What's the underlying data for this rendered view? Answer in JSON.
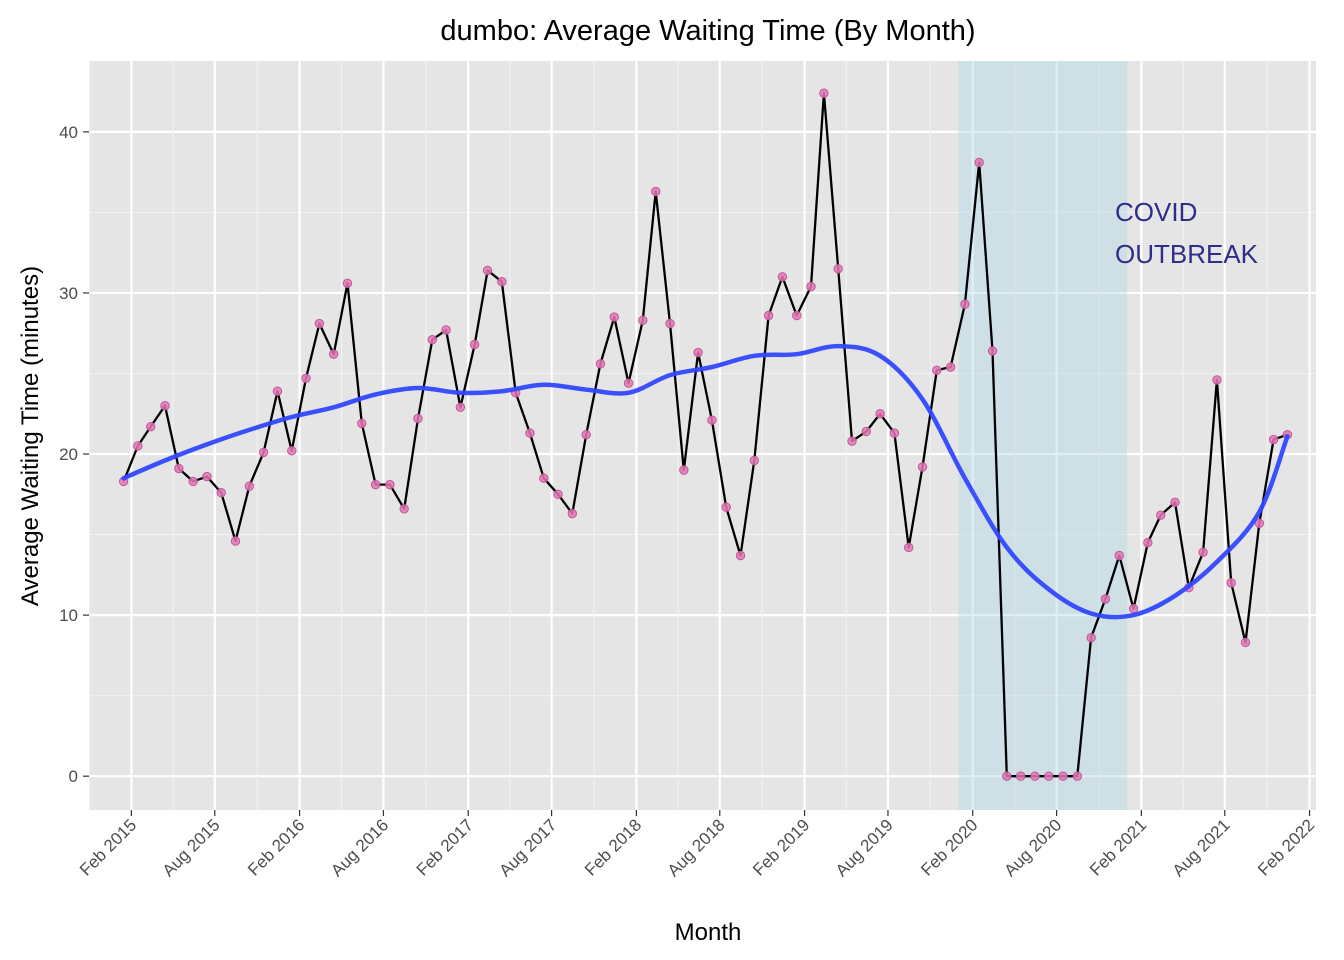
{
  "chart_data": {
    "type": "line",
    "title": "dumbo: Average Waiting Time (By Month)",
    "xlabel": "Month",
    "ylabel": "Average Waiting Time (minutes)",
    "x_range": [
      "2014-11-01",
      "2022-02-15"
    ],
    "ylim": [
      -2.1,
      44.4
    ],
    "x_ticks": [
      "Feb 2015",
      "Aug 2015",
      "Feb 2016",
      "Aug 2016",
      "Feb 2017",
      "Aug 2017",
      "Feb 2018",
      "Aug 2018",
      "Feb 2019",
      "Aug 2019",
      "Feb 2020",
      "Aug 2020",
      "Feb 2021",
      "Aug 2021",
      "Feb 2022"
    ],
    "x_tick_dates": [
      "2015-02-01",
      "2015-08-01",
      "2016-02-01",
      "2016-08-01",
      "2017-02-01",
      "2017-08-01",
      "2018-02-01",
      "2018-08-01",
      "2019-02-01",
      "2019-08-01",
      "2020-02-01",
      "2020-08-01",
      "2021-02-01",
      "2021-08-01",
      "2022-02-01"
    ],
    "y_ticks": [
      0,
      10,
      20,
      30,
      40
    ],
    "grid": true,
    "panel_background": "#e5e5e5",
    "colors": {
      "line": "#000000",
      "points": "#e377b6",
      "smooth": "#3048ff",
      "covid_band": "#add8e6",
      "annotation": "#2e2e8a"
    },
    "series": [
      {
        "type": "line+points",
        "x": [
          "2015-01",
          "2015-02",
          "2015-03",
          "2015-04",
          "2015-05",
          "2015-06",
          "2015-07",
          "2015-08",
          "2015-09",
          "2015-10",
          "2015-11",
          "2015-12",
          "2016-01",
          "2016-02",
          "2016-03",
          "2016-04",
          "2016-05",
          "2016-06",
          "2016-07",
          "2016-08",
          "2016-09",
          "2016-10",
          "2016-11",
          "2016-12",
          "2017-01",
          "2017-02",
          "2017-03",
          "2017-04",
          "2017-05",
          "2017-06",
          "2017-07",
          "2017-08",
          "2017-09",
          "2017-10",
          "2017-11",
          "2017-12",
          "2018-01",
          "2018-02",
          "2018-03",
          "2018-04",
          "2018-05",
          "2018-06",
          "2018-07",
          "2018-08",
          "2018-09",
          "2018-10",
          "2018-11",
          "2018-12",
          "2019-01",
          "2019-02",
          "2019-03",
          "2019-04",
          "2019-05",
          "2019-06",
          "2019-07",
          "2019-08",
          "2019-09",
          "2019-10",
          "2019-11",
          "2019-12",
          "2020-01",
          "2020-02",
          "2020-03",
          "2020-04",
          "2020-05",
          "2020-06",
          "2020-07",
          "2020-08",
          "2020-09",
          "2020-10",
          "2020-11",
          "2020-12",
          "2021-01",
          "2021-02",
          "2021-03",
          "2021-04",
          "2021-05",
          "2021-06",
          "2021-07",
          "2021-08",
          "2021-09",
          "2021-10",
          "2021-11",
          "2021-12"
        ],
        "values": [
          18.3,
          20.5,
          21.7,
          23.0,
          19.1,
          18.3,
          18.6,
          17.6,
          14.6,
          18.0,
          20.1,
          23.9,
          20.2,
          24.7,
          28.1,
          26.2,
          30.6,
          21.9,
          18.1,
          18.1,
          16.6,
          22.2,
          27.1,
          27.7,
          22.9,
          26.8,
          31.4,
          30.7,
          23.8,
          21.3,
          18.5,
          17.5,
          16.3,
          21.2,
          25.6,
          28.5,
          24.4,
          28.3,
          36.3,
          28.1,
          19.0,
          26.3,
          22.1,
          16.7,
          13.7,
          19.6,
          28.6,
          31.0,
          28.6,
          30.4,
          42.4,
          31.5,
          20.8,
          21.4,
          22.5,
          21.3,
          14.2,
          19.2,
          25.2,
          25.4,
          29.3,
          38.1,
          26.4,
          0,
          0,
          0,
          0,
          0,
          0,
          8.6,
          11.0,
          13.7,
          10.4,
          14.5,
          16.2,
          17.0,
          11.7,
          13.9,
          24.6,
          12.0,
          8.3,
          15.7,
          20.9,
          21.2
        ]
      },
      {
        "type": "smooth",
        "x": [
          "2015-01",
          "2015-04",
          "2015-07",
          "2015-10",
          "2016-01",
          "2016-04",
          "2016-07",
          "2016-10",
          "2017-01",
          "2017-04",
          "2017-07",
          "2017-10",
          "2018-01",
          "2018-04",
          "2018-07",
          "2018-10",
          "2019-01",
          "2019-04",
          "2019-07",
          "2019-10",
          "2020-01",
          "2020-04",
          "2020-07",
          "2020-10",
          "2021-01",
          "2021-04",
          "2021-07",
          "2021-10",
          "2021-12"
        ],
        "values": [
          18.5,
          19.6,
          20.6,
          21.5,
          22.3,
          22.9,
          23.7,
          24.1,
          23.8,
          23.9,
          24.3,
          24.0,
          23.8,
          24.9,
          25.4,
          26.1,
          26.2,
          26.7,
          26.1,
          23.4,
          18.5,
          14.2,
          11.6,
          10.1,
          10.0,
          11.2,
          13.3,
          16.4,
          21.1
        ]
      }
    ],
    "covid_band": {
      "start": "2020-01-01",
      "end": "2021-01-01"
    },
    "annotation_lines": [
      "COVID",
      "OUTBREAK"
    ]
  }
}
